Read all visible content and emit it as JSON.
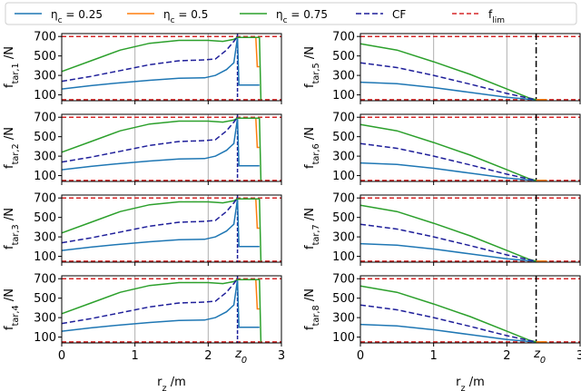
{
  "chart_data": {
    "type": "line",
    "legend": {
      "placement": "top",
      "entries": [
        {
          "label": "η_c = 0.25",
          "color": "#1f77b4",
          "style": "solid"
        },
        {
          "label": "η_c = 0.5",
          "color": "#ff7f0e",
          "style": "solid"
        },
        {
          "label": "η_c = 0.75",
          "color": "#2ca02c",
          "style": "solid"
        },
        {
          "label": "CF",
          "color": "#1f1f9a",
          "style": "dashed"
        },
        {
          "label": "f_lim",
          "color": "#d62728",
          "style": "dashed"
        }
      ]
    },
    "shared": {
      "xlabel": "r_z /m",
      "xlim": [
        0,
        3
      ],
      "ylim": [
        40,
        730
      ],
      "xticks": [
        "0",
        "1",
        "2",
        "3"
      ],
      "yticks": [
        "100",
        "300",
        "500",
        "700"
      ],
      "f_lim": [
        700,
        50
      ],
      "z0_label": "z_0",
      "z0": 2.4,
      "grid": true
    },
    "left_column": {
      "type": "line",
      "ylabels": [
        "f_tar,1 /N",
        "f_tar,2 /N",
        "f_tar,3 /N",
        "f_tar,4 /N"
      ],
      "z0_marker_row": 4,
      "series": [
        {
          "name": "η_c = 0.25",
          "x": [
            0,
            0.4,
            0.8,
            1.2,
            1.6,
            1.95,
            2.1,
            2.25,
            2.35,
            2.4,
            2.42,
            2.7
          ],
          "y": [
            160,
            195,
            225,
            250,
            270,
            275,
            300,
            360,
            430,
            690,
            200,
            200
          ]
        },
        {
          "name": "η_c = 0.5",
          "x": [
            2.4,
            2.6,
            2.65,
            2.67,
            2.7
          ],
          "y": [
            690,
            690,
            690,
            390,
            390
          ]
        },
        {
          "name": "η_c = 0.75",
          "x": [
            0,
            0.4,
            0.8,
            1.2,
            1.6,
            2.0,
            2.2,
            2.35,
            2.4,
            2.7,
            2.72
          ],
          "y": [
            340,
            450,
            560,
            630,
            660,
            660,
            650,
            670,
            690,
            690,
            50
          ]
        },
        {
          "name": "CF",
          "x": [
            0,
            0.4,
            0.8,
            1.2,
            1.6,
            1.95,
            2.1,
            2.25,
            2.35,
            2.4
          ],
          "y": [
            240,
            290,
            350,
            410,
            450,
            460,
            470,
            560,
            650,
            700
          ]
        }
      ]
    },
    "right_column": {
      "type": "line",
      "ylabels": [
        "f_tar,5 /N",
        "f_tar,6 /N",
        "f_tar,7 /N",
        "f_tar,8 /N"
      ],
      "z0_marker_row": 4,
      "series": [
        {
          "name": "η_c = 0.25",
          "x": [
            0,
            0.5,
            1.0,
            1.5,
            2.0,
            2.3,
            2.4
          ],
          "y": [
            230,
            215,
            175,
            125,
            75,
            55,
            50
          ]
        },
        {
          "name": "η_c = 0.5",
          "x": [
            2.4,
            2.5,
            2.55
          ],
          "y": [
            50,
            52,
            48
          ]
        },
        {
          "name": "η_c = 0.75",
          "x": [
            0,
            0.5,
            1.0,
            1.5,
            2.0,
            2.3,
            2.4
          ],
          "y": [
            625,
            560,
            440,
            310,
            160,
            70,
            50
          ]
        },
        {
          "name": "CF",
          "x": [
            0,
            0.5,
            1.0,
            1.5,
            2.0,
            2.3,
            2.4
          ],
          "y": [
            430,
            380,
            300,
            210,
            115,
            65,
            50
          ]
        }
      ]
    }
  }
}
